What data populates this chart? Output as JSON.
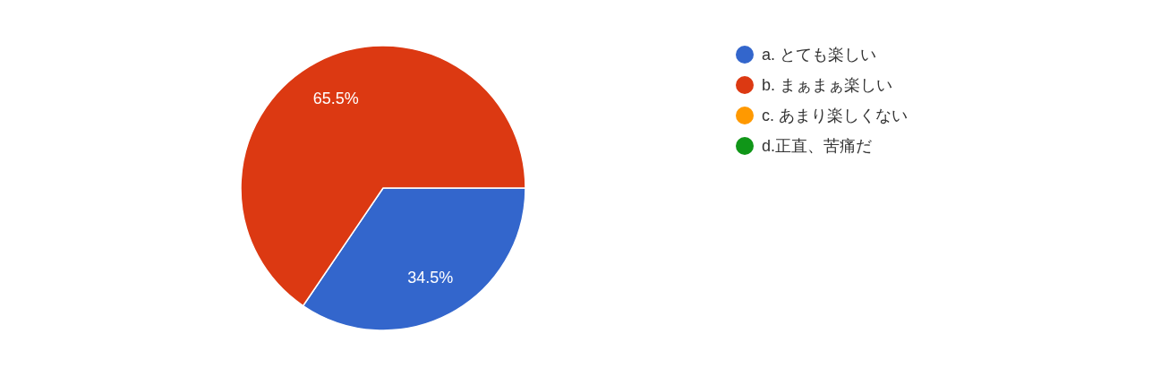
{
  "chart_data": {
    "type": "pie",
    "categories": [
      "a. とても楽しい",
      "b. まぁまぁ楽しい",
      "c. あまり楽しくない",
      "d.正直、苦痛だ"
    ],
    "values": [
      34.5,
      65.5,
      0,
      0
    ],
    "colors": [
      "#3366cc",
      "#dc3912",
      "#ff9900",
      "#109618"
    ],
    "value_labels": [
      "34.5%",
      "65.5%",
      null,
      null
    ],
    "legend": "top right"
  }
}
